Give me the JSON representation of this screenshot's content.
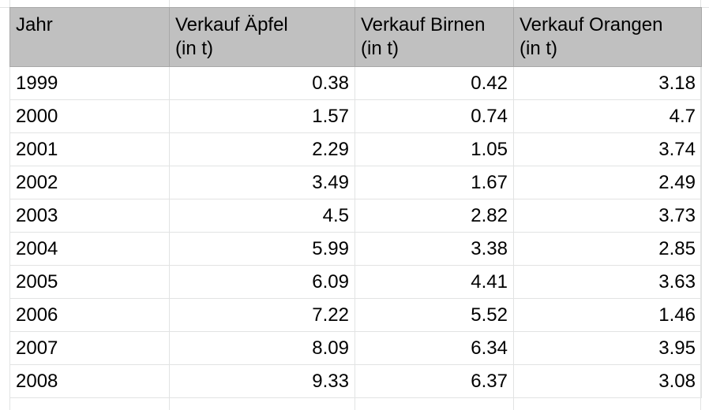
{
  "table": {
    "headers": [
      "Jahr",
      "Verkauf Äpfel\n(in t)",
      "Verkauf Birnen\n(in t)",
      "Verkauf Orangen\n(in t)"
    ],
    "rows": [
      [
        "1999",
        "0.38",
        "0.42",
        "3.18"
      ],
      [
        "2000",
        "1.57",
        "0.74",
        "4.7"
      ],
      [
        "2001",
        "2.29",
        "1.05",
        "3.74"
      ],
      [
        "2002",
        "3.49",
        "1.67",
        "2.49"
      ],
      [
        "2003",
        "4.5",
        "2.82",
        "3.73"
      ],
      [
        "2004",
        "5.99",
        "3.38",
        "2.85"
      ],
      [
        "2005",
        "6.09",
        "4.41",
        "3.63"
      ],
      [
        "2006",
        "7.22",
        "5.52",
        "1.46"
      ],
      [
        "2007",
        "8.09",
        "6.34",
        "3.95"
      ],
      [
        "2008",
        "9.33",
        "6.37",
        "3.08"
      ]
    ]
  },
  "colors": {
    "header_bg": "#c0c0c0",
    "gridline": "#e2e3e3",
    "text": "#000000"
  }
}
